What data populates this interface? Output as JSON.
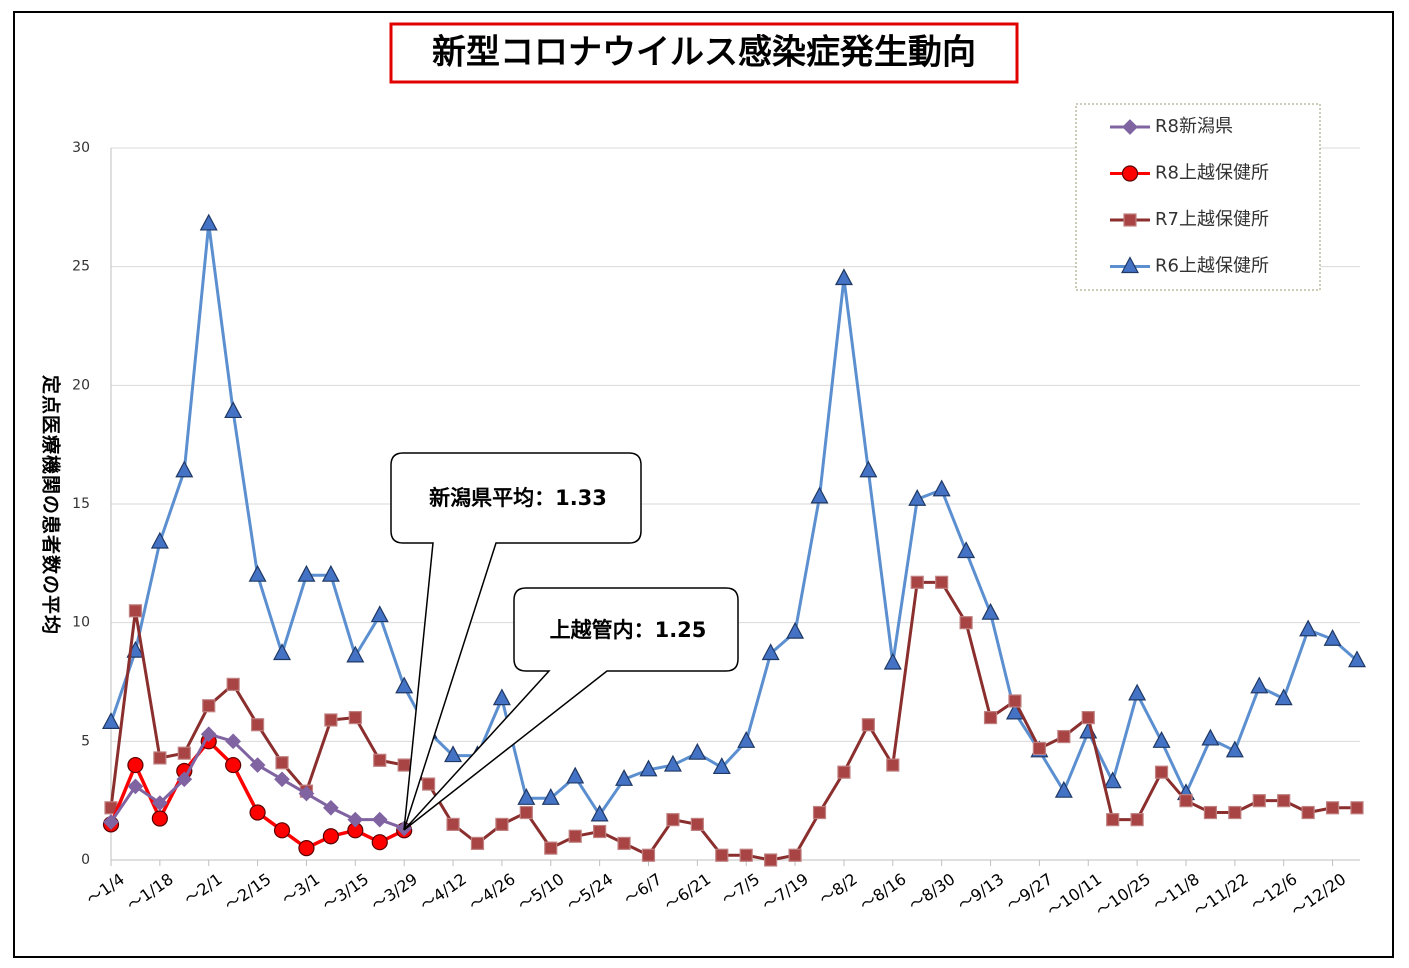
{
  "chart_data": {
    "type": "line",
    "title": "新型コロナウイルス感染症発生動向",
    "y_label": "定点医療機関の患者数の平均",
    "categories": [
      "～1/4",
      null,
      "～1/18",
      null,
      "～2/1",
      null,
      "～2/15",
      null,
      "～3/1",
      null,
      "～3/15",
      null,
      "～3/29",
      null,
      "～4/12",
      null,
      "～4/26",
      null,
      "～5/10",
      null,
      "～5/24",
      null,
      "～6/7",
      null,
      "～6/21",
      null,
      "～7/5",
      null,
      "～7/19",
      null,
      "～8/2",
      null,
      "～8/16",
      null,
      "～8/30",
      null,
      "～9/13",
      null,
      "～9/27",
      null,
      "～10/11",
      null,
      "～10/25",
      null,
      "～11/8",
      null,
      "～11/22",
      null,
      "～12/6",
      null,
      "～12/20",
      null
    ],
    "series": [
      {
        "name": "R8新潟県",
        "color": "#8064a2",
        "marker": "diamond",
        "values": [
          1.6,
          3.1,
          2.4,
          3.4,
          5.3,
          5.0,
          4.0,
          3.4,
          2.8,
          2.2,
          1.7,
          1.7,
          1.33,
          null,
          null,
          null,
          null,
          null,
          null,
          null,
          null,
          null,
          null,
          null,
          null,
          null,
          null,
          null,
          null,
          null,
          null,
          null,
          null,
          null,
          null,
          null,
          null,
          null,
          null,
          null,
          null,
          null,
          null,
          null,
          null,
          null,
          null,
          null,
          null,
          null,
          null,
          null
        ]
      },
      {
        "name": "R8上越保健所",
        "color": "#ff0000",
        "marker": "circle",
        "values": [
          1.5,
          4.0,
          1.75,
          3.75,
          5.0,
          4.0,
          2.0,
          1.25,
          0.5,
          1.0,
          1.25,
          0.75,
          1.25,
          null,
          null,
          null,
          null,
          null,
          null,
          null,
          null,
          null,
          null,
          null,
          null,
          null,
          null,
          null,
          null,
          null,
          null,
          null,
          null,
          null,
          null,
          null,
          null,
          null,
          null,
          null,
          null,
          null,
          null,
          null,
          null,
          null,
          null,
          null,
          null,
          null,
          null,
          null
        ]
      },
      {
        "name": "R7上越保健所",
        "color": "#8b2e2e",
        "marker": "square",
        "values": [
          2.2,
          10.5,
          4.3,
          4.5,
          6.5,
          7.4,
          5.7,
          4.1,
          2.9,
          5.9,
          6.0,
          4.2,
          4.0,
          3.2,
          1.5,
          0.7,
          1.5,
          2.0,
          0.5,
          1.0,
          1.2,
          0.7,
          0.2,
          1.7,
          1.5,
          0.2,
          0.2,
          0.0,
          0.2,
          2.0,
          3.7,
          5.7,
          4.0,
          11.7,
          11.7,
          10.0,
          6.0,
          6.7,
          4.7,
          5.2,
          6.0,
          1.7,
          1.7,
          3.7,
          2.5,
          2.0,
          2.0,
          2.5,
          2.5,
          2.0,
          2.2,
          2.2
        ]
      },
      {
        "name": "R6上越保健所",
        "color": "#5b8fd0",
        "marker": "triangle",
        "values": [
          5.8,
          8.8,
          13.4,
          16.4,
          26.8,
          18.9,
          12.0,
          8.7,
          12.0,
          12.0,
          8.6,
          10.3,
          7.3,
          5.4,
          4.4,
          4.4,
          6.8,
          2.6,
          2.6,
          3.5,
          1.9,
          3.4,
          3.8,
          4.0,
          4.5,
          3.9,
          5.0,
          8.7,
          9.6,
          15.3,
          24.5,
          16.4,
          8.3,
          15.2,
          15.6,
          13.0,
          10.4,
          6.2,
          4.6,
          2.9,
          5.4,
          3.3,
          7.0,
          5.0,
          2.8,
          5.1,
          4.6,
          7.3,
          6.8,
          9.7,
          9.3,
          8.4
        ]
      }
    ],
    "annotations": [
      "新潟県平均：1.33",
      "上越管内：1.25"
    ],
    "ylim": [
      0,
      30
    ],
    "yticks": [
      0,
      5,
      10,
      15,
      20,
      25,
      30
    ],
    "grid": true,
    "legend": "top-right"
  }
}
